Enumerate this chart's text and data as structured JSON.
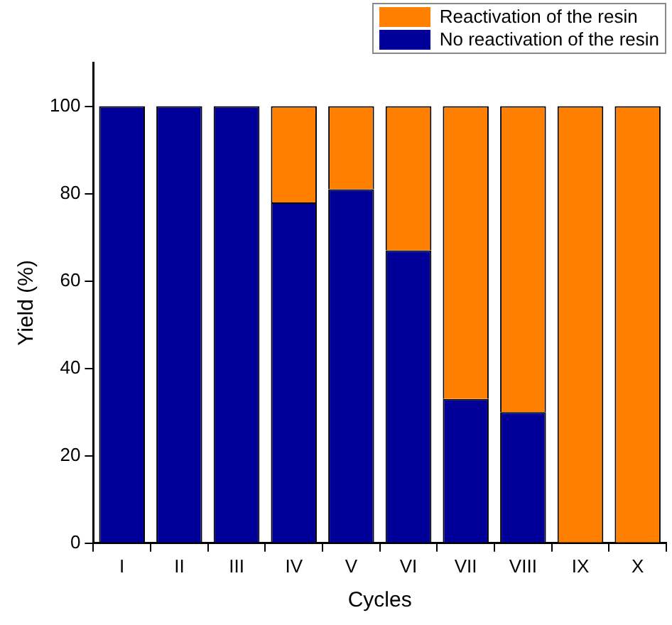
{
  "chart_data": {
    "type": "bar",
    "stacked": true,
    "xlabel": "Cycles",
    "ylabel": "Yield (%)",
    "categories": [
      "I",
      "II",
      "III",
      "IV",
      "V",
      "VI",
      "VII",
      "VIII",
      "IX",
      "X"
    ],
    "series": [
      {
        "name": "No reactivation of the resin",
        "color": "#000099",
        "values": [
          100,
          100,
          100,
          78,
          81,
          67,
          33,
          30,
          0,
          0
        ]
      },
      {
        "name": "Reactivation of the resin",
        "color": "#ff8000",
        "values": [
          0,
          0,
          0,
          22,
          19,
          33,
          67,
          70,
          100,
          100
        ]
      }
    ],
    "ylim": [
      0,
      110
    ],
    "yticks": [
      0,
      20,
      40,
      60,
      80,
      100
    ],
    "grid": false,
    "legend": "top right"
  }
}
